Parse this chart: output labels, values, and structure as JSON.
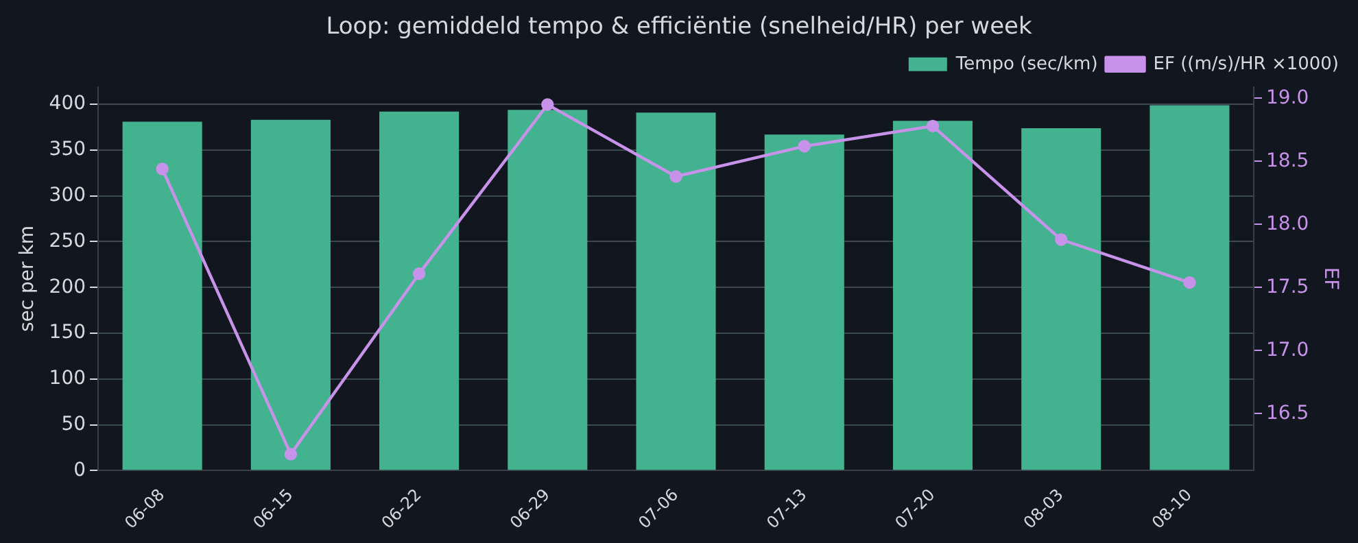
{
  "chart_data": {
    "type": "bar",
    "title": "Loop: gemiddeld tempo & efficiëntie (snelheid/HR) per week",
    "categories": [
      "06-08",
      "06-15",
      "06-22",
      "06-29",
      "07-06",
      "07-13",
      "07-20",
      "08-03",
      "08-10"
    ],
    "series": [
      {
        "name": "Tempo (sec/km)",
        "color": "#43b38f",
        "values": [
          381,
          383,
          392,
          394,
          391,
          367,
          382,
          374,
          399
        ]
      },
      {
        "name": "EF ((m/s)/HR ×1000)",
        "type": "line",
        "axis": "y2",
        "color": "#c792ea",
        "marker": "circle",
        "values": [
          18.44,
          16.18,
          17.61,
          18.95,
          18.38,
          18.62,
          18.78,
          17.88,
          17.54
        ]
      }
    ],
    "ylabel": "sec per km",
    "y2label": "EF",
    "ylim": [
      0,
      419
    ],
    "yticks": [
      0,
      50,
      100,
      150,
      200,
      250,
      300,
      350,
      400
    ],
    "y2lim": [
      16.05,
      19.09
    ],
    "y2ticks": [
      16.5,
      {
        "value": 17,
        "label": "17.0"
      },
      17.5,
      {
        "value": 18,
        "label": "18.0"
      },
      18.5,
      {
        "value": 19,
        "label": "19.0"
      }
    ],
    "grid": "y",
    "legend": "top right"
  }
}
